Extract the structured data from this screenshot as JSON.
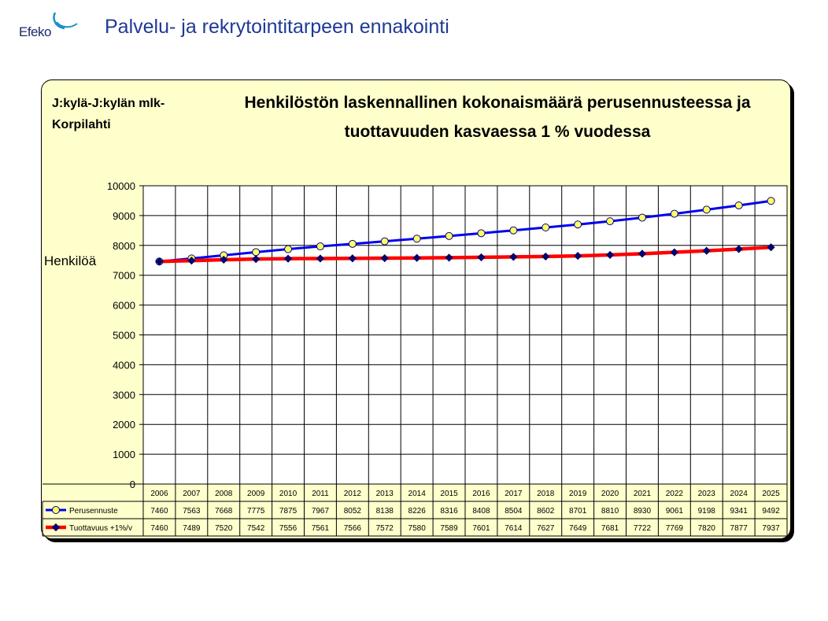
{
  "header": {
    "logo_text": "Efeko",
    "title": "Palvelu- ja rekrytointitarpeen ennakointi"
  },
  "colors": {
    "title_blue": "#1f3a93",
    "chart_background": "#ffffcc",
    "series_perusennuste_line": "#0000ee",
    "series_perusennuste_marker": "#ffff66",
    "series_tuottavuus_line": "#ff0000",
    "series_tuottavuus_marker": "#000080"
  },
  "chart_data": {
    "type": "line",
    "area_title": "J:kylä-J:kylän mlk-Korpilahti",
    "title": "Henkilöstön laskennallinen kokonaismäärä perusennusteessa ja tuottavuuden kasvaessa 1 % vuodessa",
    "ylabel": "Henkilöä",
    "xlabel": "",
    "ylim": [
      0,
      10000
    ],
    "yticks": [
      "0",
      "1000",
      "2000",
      "3000",
      "4000",
      "5000",
      "6000",
      "7000",
      "8000",
      "9000",
      "10000"
    ],
    "grid": true,
    "legend": "data table rows below chart",
    "categories": [
      "2006",
      "2007",
      "2008",
      "2009",
      "2010",
      "2011",
      "2012",
      "2013",
      "2014",
      "2015",
      "2016",
      "2017",
      "2018",
      "2019",
      "2020",
      "2021",
      "2022",
      "2023",
      "2024",
      "2025"
    ],
    "series": [
      {
        "name": "Perusennuste",
        "marker": "circle",
        "values": [
          7460,
          7563,
          7668,
          7775,
          7875,
          7967,
          8052,
          8138,
          8226,
          8316,
          8408,
          8504,
          8602,
          8701,
          8810,
          8930,
          9061,
          9198,
          9341,
          9492
        ]
      },
      {
        "name": "Tuottavuus +1%/v",
        "marker": "diamond",
        "values": [
          7460,
          7489,
          7520,
          7542,
          7556,
          7561,
          7566,
          7572,
          7580,
          7589,
          7601,
          7614,
          7627,
          7649,
          7681,
          7722,
          7769,
          7820,
          7877,
          7937
        ]
      }
    ]
  }
}
